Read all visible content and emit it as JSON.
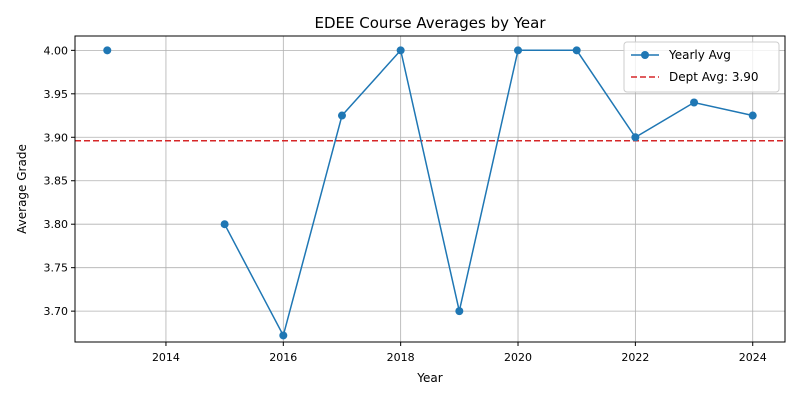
{
  "chart_data": {
    "type": "line",
    "title": "EDEE Course Averages by Year",
    "xlabel": "Year",
    "ylabel": "Average Grade",
    "xlim": [
      2012.45,
      2024.55
    ],
    "ylim": [
      3.6645,
      4.0165
    ],
    "xticks": [
      2014,
      2016,
      2018,
      2020,
      2022,
      2024
    ],
    "xtick_labels": [
      "2014",
      "2016",
      "2018",
      "2020",
      "2022",
      "2024"
    ],
    "yticks": [
      3.7,
      3.75,
      3.8,
      3.85,
      3.9,
      3.95,
      4.0
    ],
    "ytick_labels": [
      "3.70",
      "3.75",
      "3.80",
      "3.85",
      "3.90",
      "3.95",
      "4.00"
    ],
    "grid": true,
    "legend_position": "top-right",
    "series": [
      {
        "name": "Yearly Avg",
        "color": "#1f77b4",
        "marker": "circle",
        "x": [
          2013,
          2014,
          2015,
          2016,
          2017,
          2018,
          2019,
          2020,
          2021,
          2022,
          2023,
          2024
        ],
        "y": [
          4.0,
          null,
          3.8,
          3.672,
          3.925,
          4.0,
          3.7,
          4.0,
          4.0,
          3.9,
          3.94,
          3.925
        ]
      }
    ],
    "reference_line": {
      "name": "Dept Avg: 3.90",
      "value": 3.896,
      "color": "#d62728",
      "style": "dashed"
    }
  }
}
